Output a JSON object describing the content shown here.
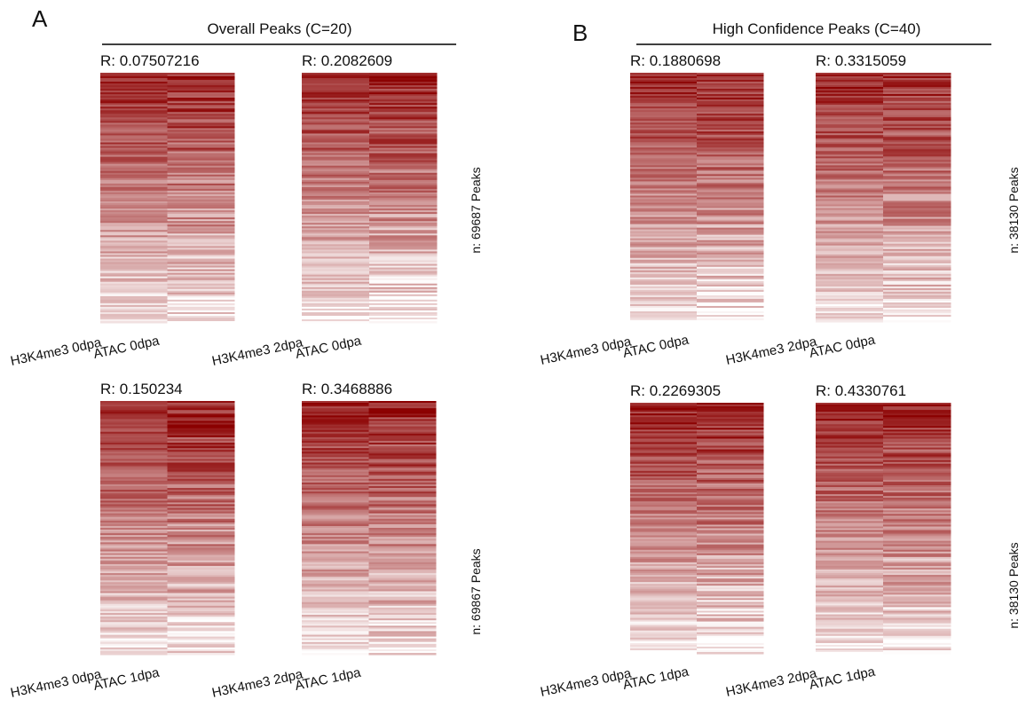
{
  "panels": [
    {
      "letter": "A",
      "title": "Overall Peaks (C=20)"
    },
    {
      "letter": "B",
      "title": "High Confidence Peaks (C=40)"
    }
  ],
  "colors": {
    "high": "#8b0000",
    "low": "#ffffff",
    "text": "#111111",
    "line": "#000000"
  },
  "chart_data": [
    {
      "type": "heatmap",
      "panel": "A",
      "row": "top",
      "title": "R: 0.07507216",
      "columns": [
        "H3K4me3 0dpa",
        "ATAC 0dpa"
      ],
      "seed": 11,
      "side_label": ""
    },
    {
      "type": "heatmap",
      "panel": "A",
      "row": "top",
      "title": "R: 0.2082609",
      "columns": [
        "H3K4me3 2dpa",
        "ATAC 0dpa"
      ],
      "seed": 23,
      "side_label": "n: 69687 Peaks"
    },
    {
      "type": "heatmap",
      "panel": "A",
      "row": "bottom",
      "title": "R: 0.150234",
      "columns": [
        "H3K4me3 0dpa",
        "ATAC 1dpa"
      ],
      "seed": 37,
      "side_label": ""
    },
    {
      "type": "heatmap",
      "panel": "A",
      "row": "bottom",
      "title": "R: 0.3468886",
      "columns": [
        "H3K4me3 2dpa",
        "ATAC 1dpa"
      ],
      "seed": 41,
      "side_label": "n: 69867 Peaks"
    },
    {
      "type": "heatmap",
      "panel": "B",
      "row": "top",
      "title": "R: 0.1880698",
      "columns": [
        "H3K4me3 0dpa",
        "ATAC 0dpa"
      ],
      "seed": 53,
      "side_label": ""
    },
    {
      "type": "heatmap",
      "panel": "B",
      "row": "top",
      "title": "R: 0.3315059",
      "columns": [
        "H3K4me3 2dpa",
        "ATAC 0dpa"
      ],
      "seed": 67,
      "side_label": "n: 38130 Peaks"
    },
    {
      "type": "heatmap",
      "panel": "B",
      "row": "bottom",
      "title": "R: 0.2269305",
      "columns": [
        "H3K4me3 0dpa",
        "ATAC 1dpa"
      ],
      "seed": 71,
      "side_label": ""
    },
    {
      "type": "heatmap",
      "panel": "B",
      "row": "bottom",
      "title": "R: 0.4330761",
      "columns": [
        "H3K4me3 2dpa",
        "ATAC 1dpa"
      ],
      "seed": 89,
      "side_label": "n: 38130  Peaks"
    }
  ]
}
